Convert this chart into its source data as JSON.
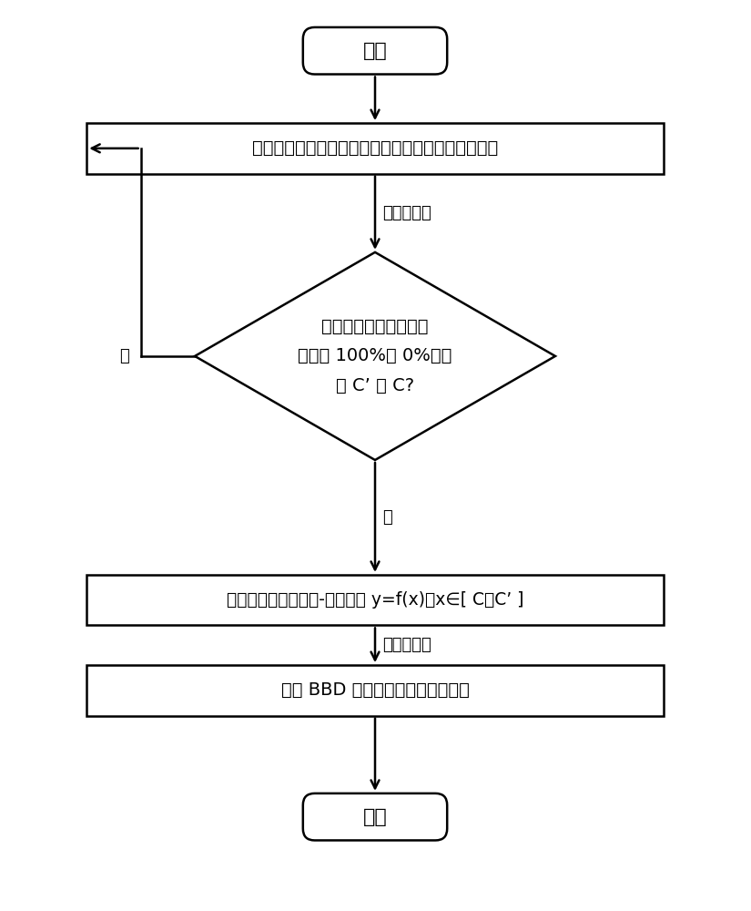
{
  "bg_color": "#ffffff",
  "line_color": "#000000",
  "text_color": "#000000",
  "start_label": "开始",
  "end_label": "结束",
  "rect1_label": "初步确定单一农药的高、中、低发光菌毒性浓度范围",
  "diamond_label": "是否找到相对发光抑制\n率接近 100%和 0%的浓\n度 C’ 和 C?",
  "rect2_label": "建立单一农药的剂量-效应方程 y=f(x)（x∈[ C，C’ ]",
  "rect3_label": "确定 BBD 试验中各农药的试验水平",
  "label_glowing1": "发光菌试验",
  "label_glowing2": "发光菌试验",
  "label_yes": "是",
  "label_no": "否"
}
